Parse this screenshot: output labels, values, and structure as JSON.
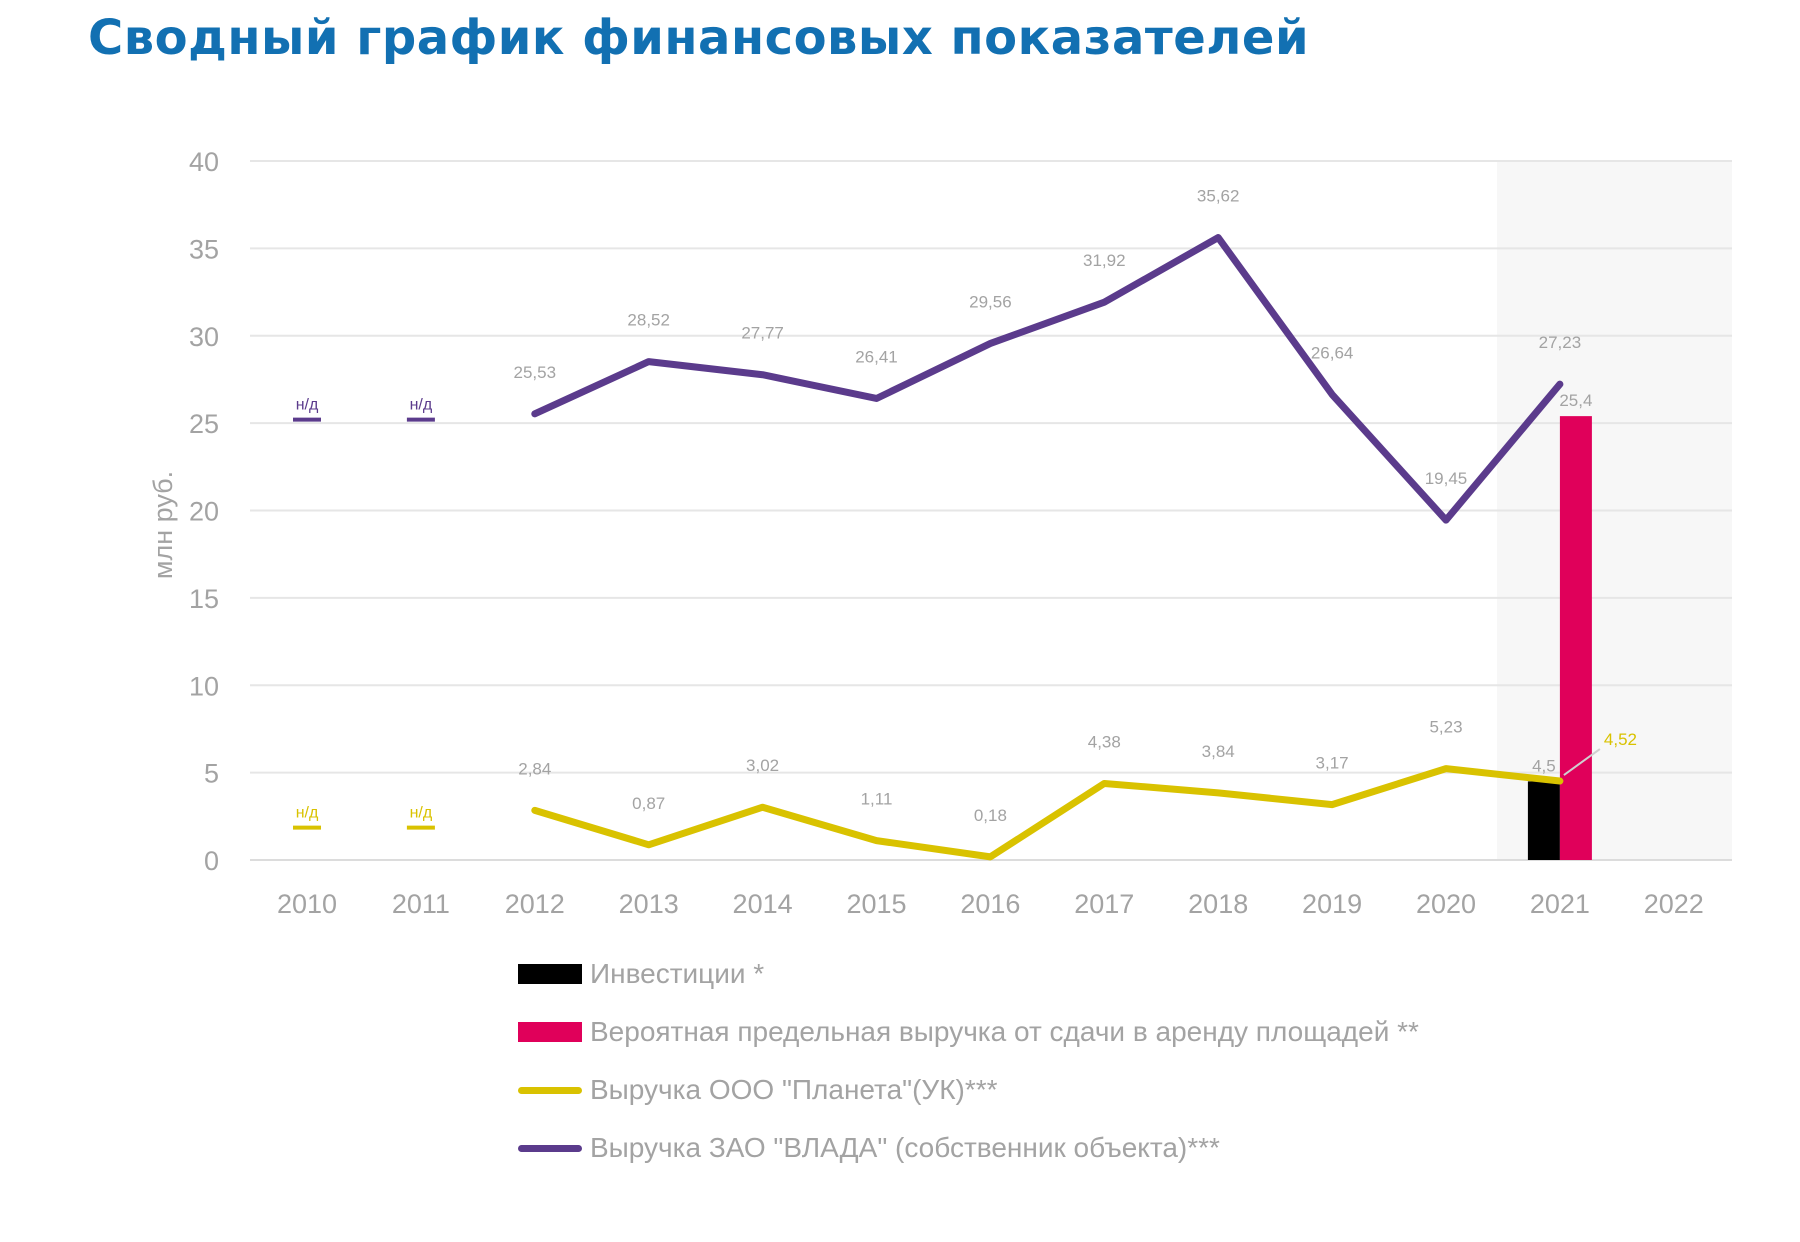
{
  "title": "Сводный график финансовых показателей",
  "chart_data": {
    "type": "line",
    "categories": [
      "2010",
      "2011",
      "2012",
      "2013",
      "2014",
      "2015",
      "2016",
      "2017",
      "2018",
      "2019",
      "2020",
      "2021",
      "2022"
    ],
    "ylabel": "млн руб.",
    "ylim": [
      0,
      40
    ],
    "yticks": [
      0,
      5,
      10,
      15,
      20,
      25,
      30,
      35,
      40
    ],
    "grid": true,
    "highlight_category": "2021",
    "na_label": "н/д",
    "na_categories": [
      "2010",
      "2011"
    ],
    "series": [
      {
        "name": "Инвестиции *",
        "kind": "bar",
        "color": "#000000",
        "values": [
          null,
          null,
          null,
          null,
          null,
          null,
          null,
          null,
          null,
          null,
          null,
          4.5,
          null
        ],
        "labels": [
          null,
          null,
          null,
          null,
          null,
          null,
          null,
          null,
          null,
          null,
          null,
          "4,5",
          null
        ]
      },
      {
        "name": "Вероятная предельная выручка от сдачи в аренду площадей **",
        "kind": "bar",
        "color": "#e0005a",
        "values": [
          null,
          null,
          null,
          null,
          null,
          null,
          null,
          null,
          null,
          null,
          null,
          25.4,
          null
        ],
        "labels": [
          null,
          null,
          null,
          null,
          null,
          null,
          null,
          null,
          null,
          null,
          null,
          "25,4",
          null
        ]
      },
      {
        "name": "Выручка ООО \"Планета\"(УК)***",
        "kind": "line",
        "color": "#d9c200",
        "values": [
          null,
          null,
          2.84,
          0.87,
          3.02,
          1.11,
          0.18,
          4.38,
          3.84,
          3.17,
          5.23,
          4.52,
          null
        ],
        "labels": [
          null,
          null,
          "2,84",
          "0,87",
          "3,02",
          "1,11",
          "0,18",
          "4,38",
          "3,84",
          "3,17",
          "5,23",
          "4,52",
          null
        ]
      },
      {
        "name": "Выручка ЗАО \"ВЛАДА\" (собственник объекта)***",
        "kind": "line",
        "color": "#5b3b8c",
        "values": [
          null,
          null,
          25.53,
          28.52,
          27.77,
          26.41,
          29.56,
          31.92,
          35.62,
          26.64,
          19.45,
          27.23,
          null
        ],
        "labels": [
          null,
          null,
          "25,53",
          "28,52",
          "27,77",
          "26,41",
          "29,56",
          "31,92",
          "35,62",
          "26,64",
          "19,45",
          "27,23",
          null
        ]
      }
    ],
    "legend_position": "bottom-center"
  }
}
